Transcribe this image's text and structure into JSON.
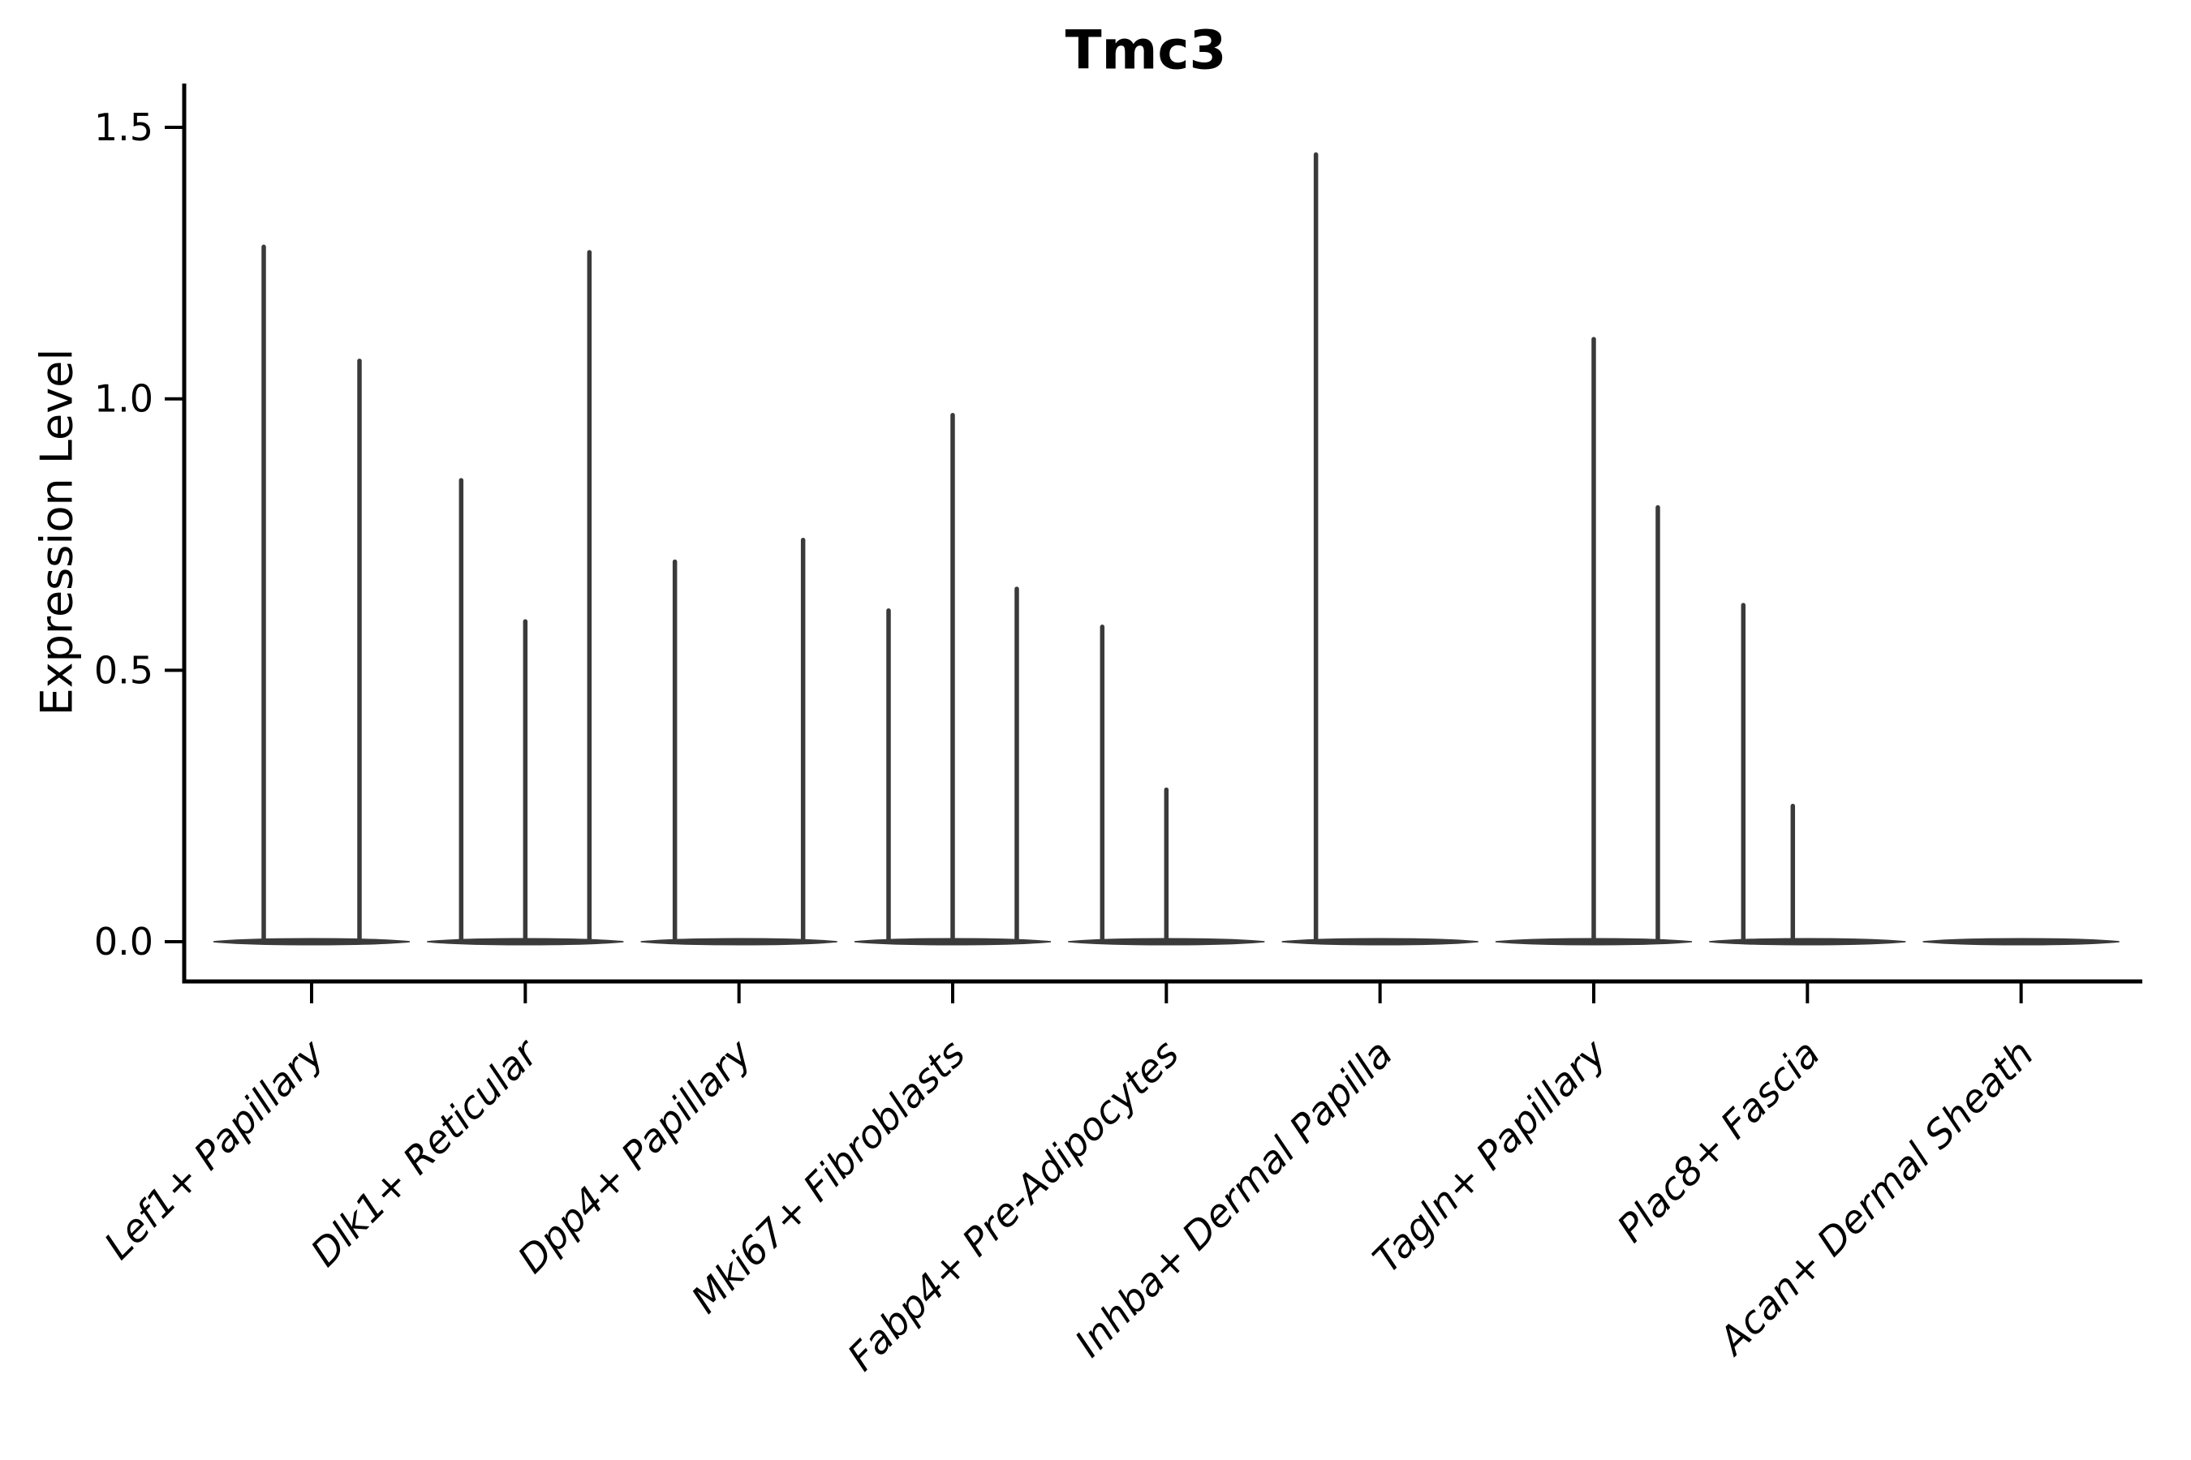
{
  "chart_data": {
    "type": "violin",
    "title": "Tmc3",
    "ylabel": "Expression Level",
    "xlabel": "",
    "yticks": [
      "0.0",
      "0.5",
      "1.0",
      "1.5"
    ],
    "ytick_values": [
      0.0,
      0.5,
      1.0,
      1.5
    ],
    "ylim": [
      0.0,
      1.5
    ],
    "grid": false,
    "legend": "none",
    "description": "Violin plot of Tmc3 expression across fibroblast clusters; distributions are concentrated at 0 so each violin collapses to a flat base with thin spikes reaching the maximum expression of expressing cells.",
    "categories": [
      "Lef1+ Papillary",
      "Dlk1+ Reticular",
      "Dpp4+ Papillary",
      "Mki67+ Fibroblasts",
      "Fabp4+ Pre-Adipocytes",
      "Inhba+ Dermal Papilla",
      "Tagln+ Papillary",
      "Plac8+ Fascia",
      "Acan+ Dermal Sheath"
    ],
    "groups": [
      {
        "category": "Lef1+ Papillary",
        "spikes": [
          {
            "offset": -59,
            "max_value": 1.28
          },
          {
            "offset": 59,
            "max_value": 1.07
          }
        ]
      },
      {
        "category": "Dlk1+ Reticular",
        "spikes": [
          {
            "offset": -79,
            "max_value": 0.85
          },
          {
            "offset": 0,
            "max_value": 0.59
          },
          {
            "offset": 79,
            "max_value": 1.27
          }
        ]
      },
      {
        "category": "Dpp4+ Papillary",
        "spikes": [
          {
            "offset": -79,
            "max_value": 0.7
          },
          {
            "offset": 79,
            "max_value": 0.74
          }
        ]
      },
      {
        "category": "Mki67+ Fibroblasts",
        "spikes": [
          {
            "offset": -79,
            "max_value": 0.61
          },
          {
            "offset": 0,
            "max_value": 0.97
          },
          {
            "offset": 79,
            "max_value": 0.65
          }
        ]
      },
      {
        "category": "Fabp4+ Pre-Adipocytes",
        "spikes": [
          {
            "offset": -79,
            "max_value": 0.58
          },
          {
            "offset": 0,
            "max_value": 0.28
          }
        ]
      },
      {
        "category": "Inhba+ Dermal Papilla",
        "spikes": [
          {
            "offset": -79,
            "max_value": 1.45
          }
        ]
      },
      {
        "category": "Tagln+ Papillary",
        "spikes": [
          {
            "offset": 0,
            "max_value": 1.11
          },
          {
            "offset": 79,
            "max_value": 0.8
          }
        ]
      },
      {
        "category": "Plac8+ Fascia",
        "spikes": [
          {
            "offset": -79,
            "max_value": 0.62
          },
          {
            "offset": -18,
            "max_value": 0.25
          }
        ]
      },
      {
        "category": "Acan+ Dermal Sheath",
        "spikes": []
      }
    ],
    "colors": {
      "violin": "#3a3a3a",
      "axis": "#000000",
      "background": "#ffffff"
    }
  }
}
